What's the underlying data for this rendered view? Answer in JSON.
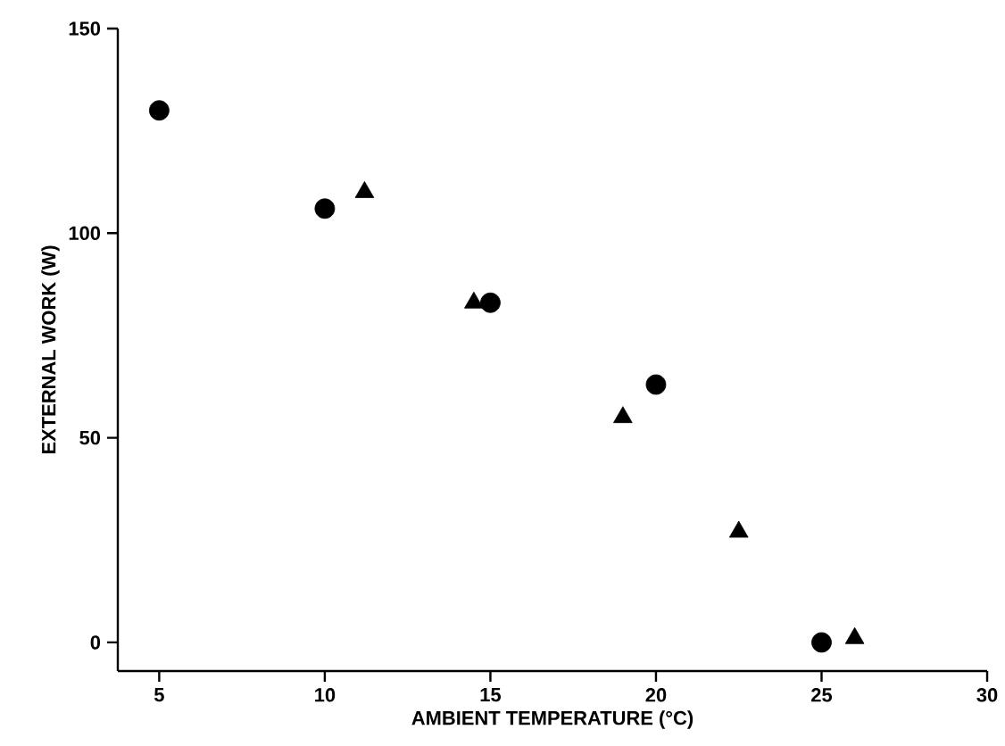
{
  "chart_data": {
    "type": "scatter",
    "xlabel": "AMBIENT TEMPERATURE  (°C)",
    "ylabel": "EXTERNAL WORK (W)",
    "xlim": [
      3.75,
      30
    ],
    "ylim": [
      -7,
      150
    ],
    "xticks": [
      5,
      10,
      15,
      20,
      25,
      30
    ],
    "yticks": [
      0,
      50,
      100,
      150
    ],
    "grid": false,
    "series": [
      {
        "color": "#000000",
        "marker": "circle",
        "x": [
          5,
          10,
          15,
          20,
          25
        ],
        "values": [
          130,
          106,
          83,
          63,
          0
        ]
      },
      {
        "color": "#000000",
        "marker": "triangle",
        "x": [
          11.2,
          14.5,
          19,
          22.5,
          26
        ],
        "values": [
          110,
          83,
          55,
          27,
          1
        ]
      }
    ]
  }
}
